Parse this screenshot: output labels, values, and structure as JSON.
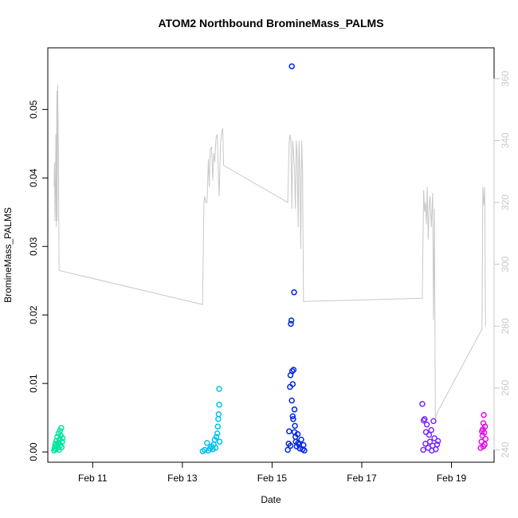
{
  "chart_data": {
    "type": "scatter",
    "title": "ATOM2 Northbound BromineMass_PALMS",
    "xlabel": "Date",
    "ylabel": "BromineMass_PALMS",
    "x_ticks": [
      {
        "label": "Feb 11",
        "day": 11
      },
      {
        "label": "Feb 13",
        "day": 13
      },
      {
        "label": "Feb 15",
        "day": 15
      },
      {
        "label": "Feb 17",
        "day": 17
      },
      {
        "label": "Feb 19",
        "day": 19
      }
    ],
    "xlim": [
      10.0,
      19.95
    ],
    "ylim_left": [
      -0.0015,
      0.059
    ],
    "yticks_left": [
      "0.00",
      "0.01",
      "0.02",
      "0.03",
      "0.04",
      "0.05"
    ],
    "ylim_right": [
      236,
      370
    ],
    "yticks_right": [
      "240",
      "260",
      "280",
      "300",
      "320",
      "340",
      "360"
    ],
    "colors": {
      "axis": "#000000",
      "altitude_line": "#c8c8c8",
      "right_axis_text": "#c8c8c8"
    },
    "series": [
      {
        "color": "#00e5a0",
        "axis": "left",
        "points": [
          [
            10.14,
            0.0002
          ],
          [
            10.15,
            0.0005
          ],
          [
            10.16,
            0.0008
          ],
          [
            10.17,
            0.0012
          ],
          [
            10.18,
            0.0004
          ],
          [
            10.19,
            0.0016
          ],
          [
            10.2,
            0.0009
          ],
          [
            10.21,
            0.0022
          ],
          [
            10.22,
            0.0006
          ],
          [
            10.23,
            0.0013
          ],
          [
            10.24,
            0.0027
          ],
          [
            10.25,
            0.0003
          ],
          [
            10.26,
            0.0018
          ],
          [
            10.27,
            0.0031
          ],
          [
            10.28,
            0.001
          ],
          [
            10.29,
            0.0024
          ],
          [
            10.3,
            0.0035
          ],
          [
            10.31,
            0.0007
          ],
          [
            10.32,
            0.0015
          ],
          [
            10.33,
            0.002
          ]
        ]
      },
      {
        "color": "#00c3f0",
        "axis": "left",
        "points": [
          [
            13.45,
            0.0001
          ],
          [
            13.5,
            0.0003
          ],
          [
            13.55,
            0.0013
          ],
          [
            13.58,
            0.0002
          ],
          [
            13.62,
            0.0005
          ],
          [
            13.65,
            0.0008
          ],
          [
            13.68,
            0.0004
          ],
          [
            13.7,
            0.0011
          ],
          [
            13.72,
            0.0018
          ],
          [
            13.74,
            0.0006
          ],
          [
            13.76,
            0.0022
          ],
          [
            13.78,
            0.0027
          ],
          [
            13.79,
            0.0037
          ],
          [
            13.8,
            0.0048
          ],
          [
            13.81,
            0.0055
          ],
          [
            13.82,
            0.0069
          ],
          [
            13.82,
            0.0092
          ],
          [
            13.83,
            0.0015
          ]
        ]
      },
      {
        "color": "#0028e0",
        "axis": "left",
        "points": [
          [
            15.35,
            0.0003
          ],
          [
            15.37,
            0.0012
          ],
          [
            15.38,
            0.003
          ],
          [
            15.4,
            0.0095
          ],
          [
            15.41,
            0.0112
          ],
          [
            15.42,
            0.0187
          ],
          [
            15.43,
            0.0192
          ],
          [
            15.44,
            0.0563
          ],
          [
            15.45,
            0.0118
          ],
          [
            15.46,
            0.0099
          ],
          [
            15.47,
            0.0048
          ],
          [
            15.48,
            0.012
          ],
          [
            15.49,
            0.0233
          ],
          [
            15.5,
            0.0062
          ],
          [
            15.51,
            0.0038
          ],
          [
            15.52,
            0.0022
          ],
          [
            15.53,
            0.0015
          ],
          [
            15.55,
            0.0008
          ],
          [
            15.57,
            0.0026
          ],
          [
            15.6,
            0.0011
          ],
          [
            15.62,
            0.0005
          ],
          [
            15.65,
            0.0018
          ],
          [
            15.68,
            0.0004
          ],
          [
            15.7,
            0.001
          ],
          [
            15.72,
            0.0002
          ],
          [
            15.44,
            0.0075
          ],
          [
            15.46,
            0.0052
          ],
          [
            15.41,
            0.0009
          ],
          [
            15.5,
            0.0029
          ],
          [
            15.58,
            0.0013
          ]
        ]
      },
      {
        "color": "#7a2aff",
        "axis": "left",
        "points": [
          [
            18.35,
            0.007
          ],
          [
            18.37,
            0.0003
          ],
          [
            18.4,
            0.0048
          ],
          [
            18.42,
            0.0012
          ],
          [
            18.45,
            0.004
          ],
          [
            18.48,
            0.0006
          ],
          [
            18.5,
            0.0025
          ],
          [
            18.52,
            0.0015
          ],
          [
            18.55,
            0.0032
          ],
          [
            18.58,
            0.0009
          ],
          [
            18.6,
            0.0045
          ],
          [
            18.62,
            0.002
          ],
          [
            18.65,
            0.0004
          ],
          [
            18.68,
            0.0011
          ],
          [
            18.7,
            0.0016
          ],
          [
            18.43,
            0.0029
          ],
          [
            18.56,
            0.0002
          ],
          [
            18.38,
            0.0046
          ]
        ]
      },
      {
        "color": "#e010e8",
        "axis": "left",
        "points": [
          [
            19.65,
            0.0006
          ],
          [
            19.67,
            0.0015
          ],
          [
            19.69,
            0.0024
          ],
          [
            19.7,
            0.0033
          ],
          [
            19.71,
            0.0042
          ],
          [
            19.72,
            0.0054
          ],
          [
            19.73,
            0.0028
          ],
          [
            19.74,
            0.0011
          ],
          [
            19.75,
            0.0037
          ],
          [
            19.76,
            0.0019
          ],
          [
            19.71,
            0.0008
          ],
          [
            19.68,
            0.003
          ]
        ]
      },
      {
        "color": "#c8c8c8",
        "axis": "right",
        "type": "line",
        "points": [
          [
            10.14,
            325
          ],
          [
            10.15,
            333
          ],
          [
            10.16,
            314
          ],
          [
            10.17,
            325
          ],
          [
            10.18,
            342
          ],
          [
            10.19,
            312
          ],
          [
            10.2,
            356
          ],
          [
            10.21,
            314
          ],
          [
            10.22,
            358
          ],
          [
            10.24,
            330
          ],
          [
            10.25,
            298
          ],
          [
            13.45,
            287
          ],
          [
            13.48,
            320
          ],
          [
            13.5,
            322
          ],
          [
            13.52,
            320
          ],
          [
            13.55,
            320
          ],
          [
            13.58,
            334
          ],
          [
            13.6,
            325
          ],
          [
            13.62,
            337
          ],
          [
            13.65,
            338
          ],
          [
            13.68,
            327
          ],
          [
            13.7,
            336
          ],
          [
            13.72,
            333
          ],
          [
            13.75,
            341
          ],
          [
            13.78,
            342
          ],
          [
            13.8,
            330
          ],
          [
            13.82,
            322
          ],
          [
            13.85,
            339
          ],
          [
            13.88,
            343
          ],
          [
            13.9,
            344
          ],
          [
            13.92,
            332
          ],
          [
            15.35,
            320
          ],
          [
            15.38,
            339
          ],
          [
            15.4,
            342
          ],
          [
            15.42,
            340
          ],
          [
            15.44,
            318
          ],
          [
            15.46,
            340
          ],
          [
            15.48,
            336
          ],
          [
            15.5,
            331
          ],
          [
            15.52,
            318
          ],
          [
            15.54,
            340
          ],
          [
            15.56,
            335
          ],
          [
            15.58,
            312
          ],
          [
            15.6,
            340
          ],
          [
            15.62,
            330
          ],
          [
            15.64,
            305
          ],
          [
            15.66,
            340
          ],
          [
            15.68,
            330
          ],
          [
            15.7,
            288
          ],
          [
            18.35,
            289
          ],
          [
            18.38,
            324
          ],
          [
            18.4,
            317
          ],
          [
            18.42,
            320
          ],
          [
            18.44,
            313
          ],
          [
            18.46,
            325
          ],
          [
            18.48,
            308
          ],
          [
            18.5,
            318
          ],
          [
            18.52,
            322
          ],
          [
            18.55,
            312
          ],
          [
            18.58,
            323
          ],
          [
            18.6,
            282
          ],
          [
            18.62,
            318
          ],
          [
            18.64,
            250
          ],
          [
            18.68,
            252
          ],
          [
            19.68,
            279
          ],
          [
            19.7,
            325
          ],
          [
            19.72,
            319
          ],
          [
            19.74,
            325
          ],
          [
            19.76,
            280
          ]
        ]
      }
    ]
  }
}
